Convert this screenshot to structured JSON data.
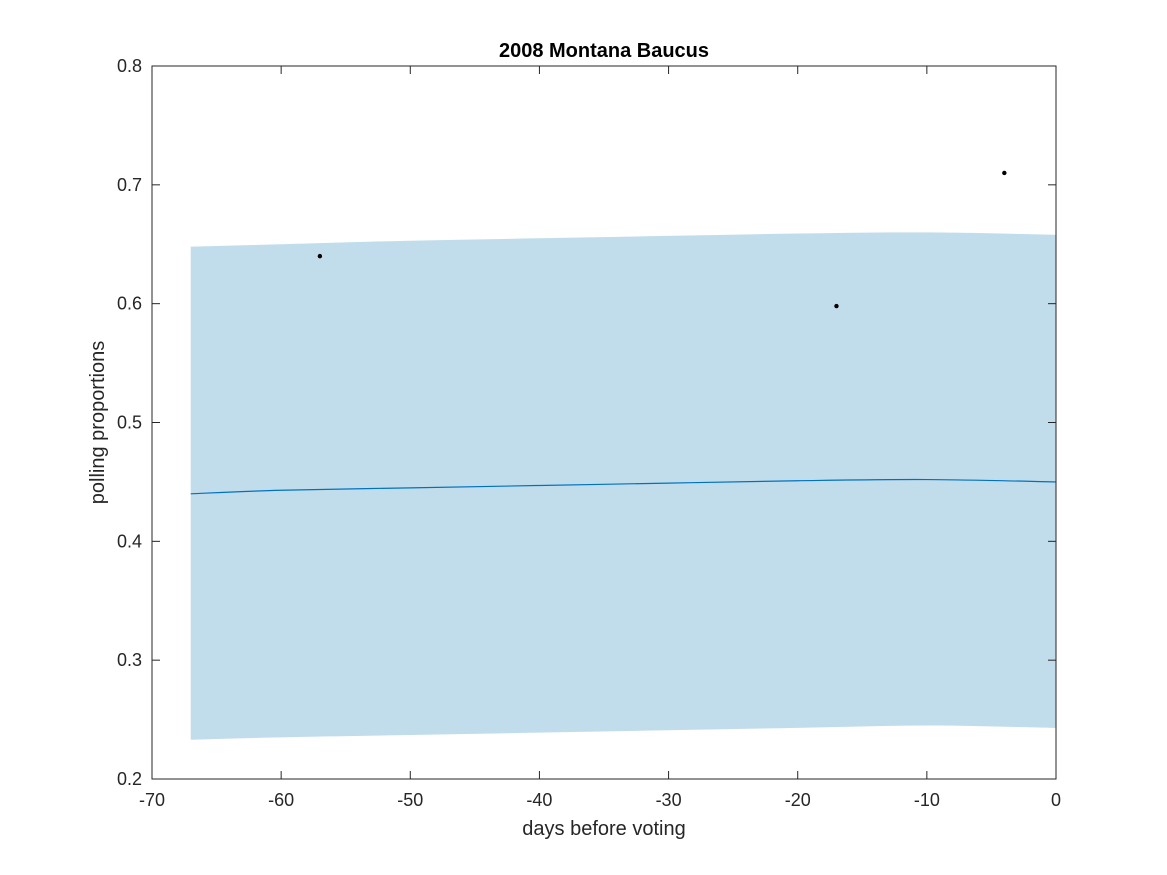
{
  "chart_data": {
    "type": "line",
    "title": "2008 Montana Baucus",
    "xlabel": "days before voting",
    "ylabel": "polling proportions",
    "xlim": [
      -70,
      0
    ],
    "ylim": [
      0.2,
      0.8
    ],
    "xticks": [
      -70,
      -60,
      -50,
      -40,
      -30,
      -20,
      -10,
      0
    ],
    "xtick_labels": [
      "-70",
      "-60",
      "-50",
      "-40",
      "-30",
      "-20",
      "-10",
      "0"
    ],
    "yticks": [
      0.2,
      0.3,
      0.4,
      0.5,
      0.6,
      0.7,
      0.8
    ],
    "ytick_labels": [
      "0.2",
      "0.3",
      "0.4",
      "0.5",
      "0.6",
      "0.7",
      "0.8"
    ],
    "grid": false,
    "band": {
      "x": [
        -67,
        -60,
        -50,
        -40,
        -30,
        -20,
        -10,
        0
      ],
      "upper": [
        0.648,
        0.65,
        0.653,
        0.655,
        0.657,
        0.659,
        0.66,
        0.658
      ],
      "lower": [
        0.233,
        0.235,
        0.237,
        0.239,
        0.241,
        0.243,
        0.245,
        0.243
      ],
      "color": "#c1ddeb"
    },
    "trend": {
      "x": [
        -67,
        -60,
        -50,
        -40,
        -30,
        -20,
        -10,
        0
      ],
      "y": [
        0.44,
        0.443,
        0.445,
        0.447,
        0.449,
        0.451,
        0.452,
        0.45
      ],
      "color": "#0072bd"
    },
    "points": {
      "x": [
        -57,
        -17,
        -4
      ],
      "y": [
        0.64,
        0.598,
        0.71
      ],
      "color": "#000000"
    }
  }
}
